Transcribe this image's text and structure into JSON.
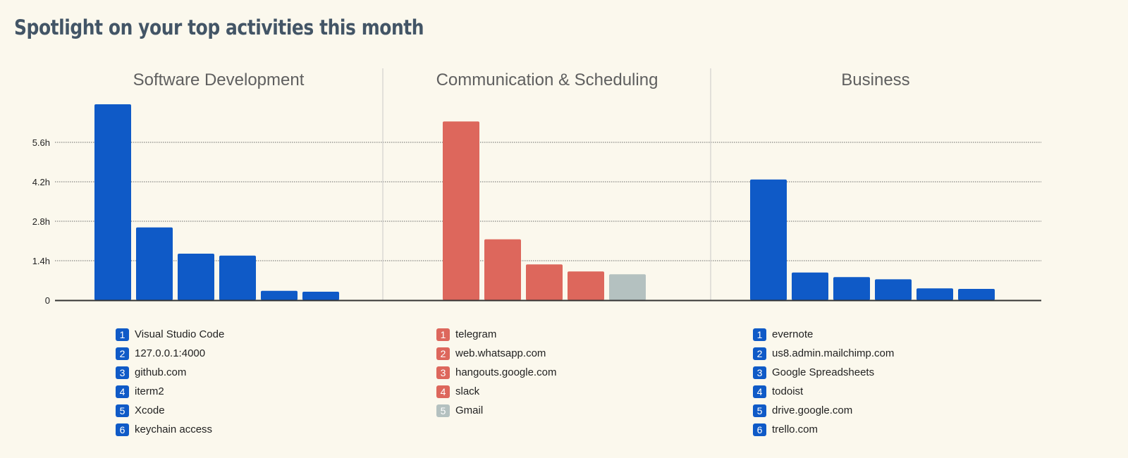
{
  "page": {
    "title": "Spotlight on your top activities this month"
  },
  "colors": {
    "blue": "#0f5ac7",
    "red": "#dd675c",
    "gray": "#b4c1c0",
    "grid": "#6b6b6b",
    "divider": "#c8c8c8",
    "baseline": "#333333",
    "panel_title": "#5f5f5f",
    "axis_text": "#222222"
  },
  "chart_data": [
    {
      "type": "bar",
      "title": "Software Development",
      "ylim": [
        0,
        7.0
      ],
      "yticks": [
        0,
        1.4,
        2.8,
        4.2,
        5.6
      ],
      "ytick_labels": [
        "0",
        "1.4h",
        "2.8h",
        "4.2h",
        "5.6h"
      ],
      "grid": true,
      "categories": [
        "Visual Studio Code",
        "127.0.0.1:4000",
        "github.com",
        "iterm2",
        "Xcode",
        "keychain access"
      ],
      "ranks": [
        "1",
        "2",
        "3",
        "4",
        "5",
        "6"
      ],
      "values": [
        6.95,
        2.58,
        1.65,
        1.58,
        0.33,
        0.3
      ],
      "bar_colors": [
        "#0f5ac7",
        "#0f5ac7",
        "#0f5ac7",
        "#0f5ac7",
        "#0f5ac7",
        "#0f5ac7"
      ]
    },
    {
      "type": "bar",
      "title": "Communication & Scheduling",
      "ylim": [
        0,
        7.0
      ],
      "categories": [
        "telegram",
        "web.whatsapp.com",
        "hangouts.google.com",
        "slack",
        "Gmail"
      ],
      "ranks": [
        "1",
        "2",
        "3",
        "4",
        "5"
      ],
      "values": [
        6.34,
        2.16,
        1.27,
        1.02,
        0.92
      ],
      "bar_colors": [
        "#dd675c",
        "#dd675c",
        "#dd675c",
        "#dd675c",
        "#b4c1c0"
      ]
    },
    {
      "type": "bar",
      "title": "Business",
      "ylim": [
        0,
        7.0
      ],
      "categories": [
        "evernote",
        "us8.admin.mailchimp.com",
        "Google Spreadsheets",
        "todoist",
        "drive.google.com",
        "trello.com"
      ],
      "ranks": [
        "1",
        "2",
        "3",
        "4",
        "5",
        "6"
      ],
      "values": [
        4.28,
        0.98,
        0.82,
        0.74,
        0.42,
        0.4
      ],
      "bar_colors": [
        "#0f5ac7",
        "#0f5ac7",
        "#0f5ac7",
        "#0f5ac7",
        "#0f5ac7",
        "#0f5ac7"
      ]
    }
  ]
}
